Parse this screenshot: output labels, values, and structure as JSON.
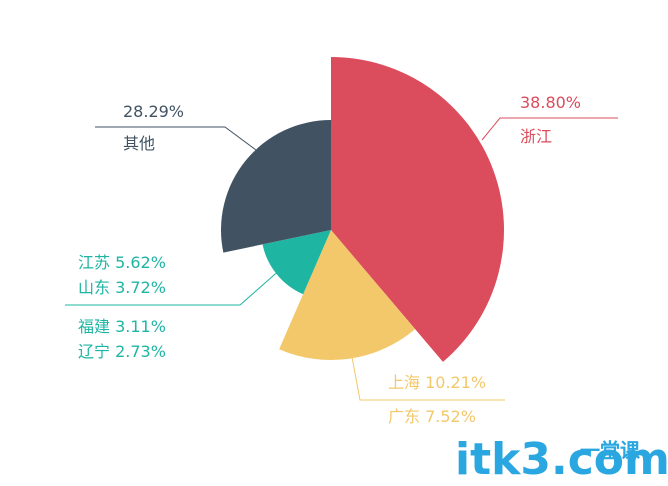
{
  "chart_data": {
    "type": "pie",
    "groups": [
      {
        "color": "#db4c5c",
        "items": [
          {
            "name": "浙江",
            "value": 38.8,
            "value_label": "38.80%"
          }
        ]
      },
      {
        "color": "#f3c86a",
        "items": [
          {
            "name": "上海",
            "value": 10.21,
            "value_label": "10.21%"
          },
          {
            "name": "广东",
            "value": 7.52,
            "value_label": "7.52%"
          }
        ]
      },
      {
        "color": "#1fb5a3",
        "items": [
          {
            "name": "江苏",
            "value": 5.62,
            "value_label": "5.62%"
          },
          {
            "name": "山东",
            "value": 3.72,
            "value_label": "3.72%"
          },
          {
            "name": "福建",
            "value": 3.11,
            "value_label": "3.11%"
          },
          {
            "name": "辽宁",
            "value": 2.73,
            "value_label": "2.73%"
          }
        ]
      },
      {
        "color": "#415363",
        "items": [
          {
            "name": "其他",
            "value": 28.29,
            "value_label": "28.29%"
          }
        ]
      }
    ]
  },
  "watermark": {
    "site": "itk3.com",
    "brand": "一堂课"
  }
}
